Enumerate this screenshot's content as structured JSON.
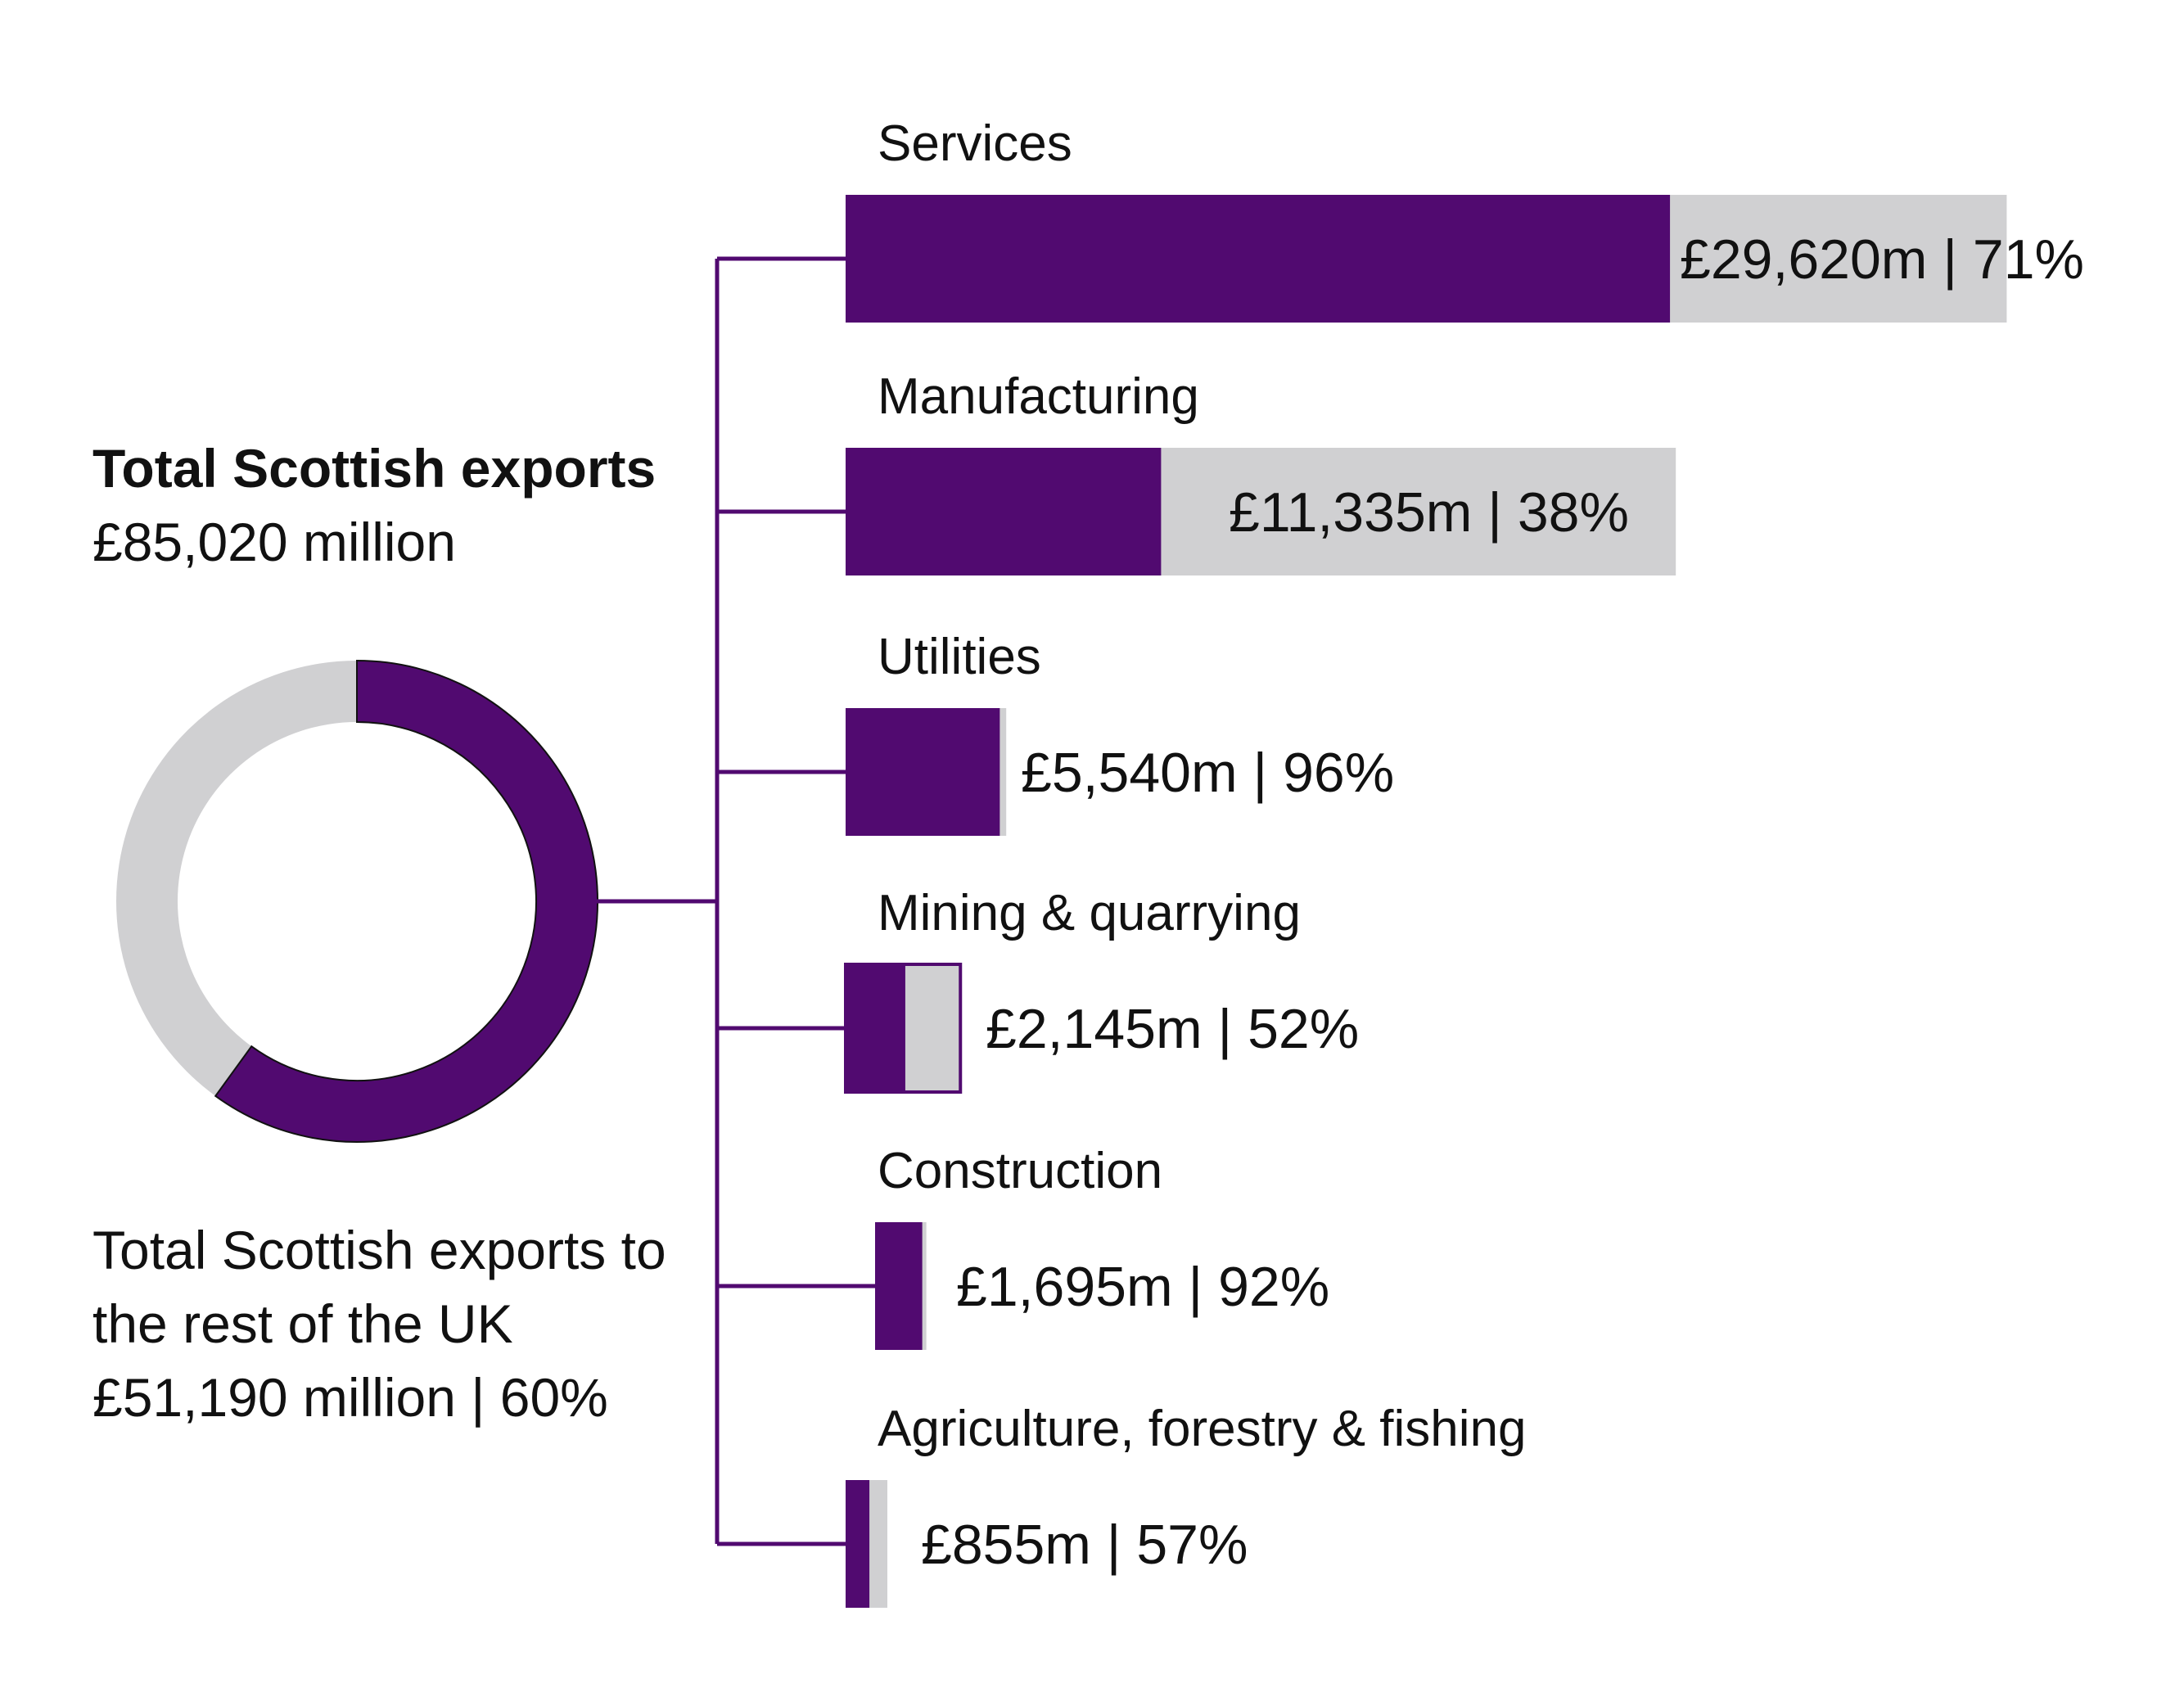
{
  "chart_data": {
    "type": "bar",
    "title": "Total Scottish exports",
    "total_label": "£85,020 million",
    "total_value_m": 85020,
    "ruk": {
      "lines": [
        "Total Scottish exports to",
        "the rest of the UK",
        "£51,190 million | 60%"
      ],
      "value_m": 51190,
      "share": 0.6
    },
    "categories": [
      "Services",
      "Manufacturing",
      "Utilities",
      "Mining & quarrying",
      "Construction",
      "Agriculture, forestry & fishing"
    ],
    "values_m": [
      29620,
      11335,
      5540,
      2145,
      1695,
      855
    ],
    "shares": [
      0.71,
      0.38,
      0.96,
      0.52,
      0.92,
      0.57
    ],
    "value_labels": [
      "£29,620m | 71%",
      "£11,335m | 38%",
      "£5,540m | 96%",
      "£2,145m | 52%",
      "£1,695m | 92%",
      "£855m | 57%"
    ],
    "series": [
      {
        "name": "Exports to rest of UK",
        "color": "#510a70"
      },
      {
        "name": "Total exports",
        "color": "#d0d0d2"
      }
    ]
  }
}
